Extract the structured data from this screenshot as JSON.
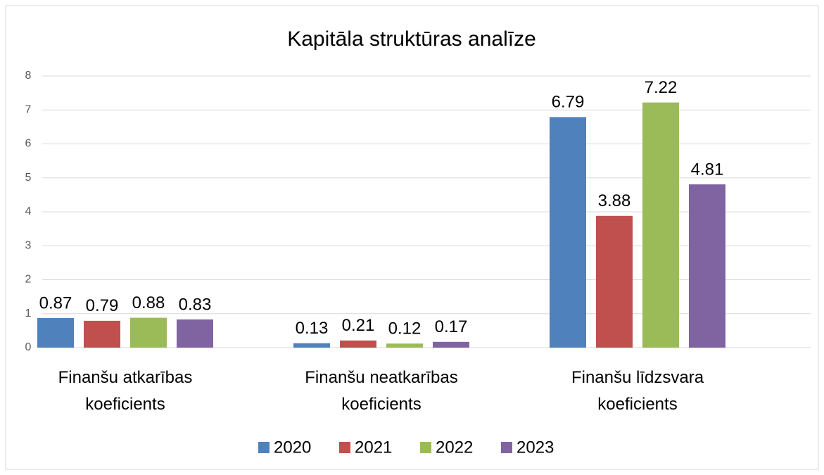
{
  "chart_data": {
    "type": "bar",
    "title": "Kapitāla struktūras analīze",
    "categories": [
      "Finanšu atkarības koeficients",
      "Finanšu neatkarības koeficients",
      "Finanšu līdzsvara koeficients"
    ],
    "series": [
      {
        "name": "2020",
        "color": "#4f81bd",
        "values": [
          0.87,
          0.13,
          6.79
        ]
      },
      {
        "name": "2021",
        "color": "#c0504d",
        "values": [
          0.79,
          0.21,
          3.88
        ]
      },
      {
        "name": "2022",
        "color": "#9bbb59",
        "values": [
          0.88,
          0.12,
          7.22
        ]
      },
      {
        "name": "2023",
        "color": "#8064a2",
        "values": [
          0.83,
          0.17,
          4.81
        ]
      }
    ],
    "ylim": [
      0,
      8
    ],
    "yticks": [
      0,
      1,
      2,
      3,
      4,
      5,
      6,
      7,
      8
    ],
    "grid": true,
    "legend": "bottom"
  }
}
